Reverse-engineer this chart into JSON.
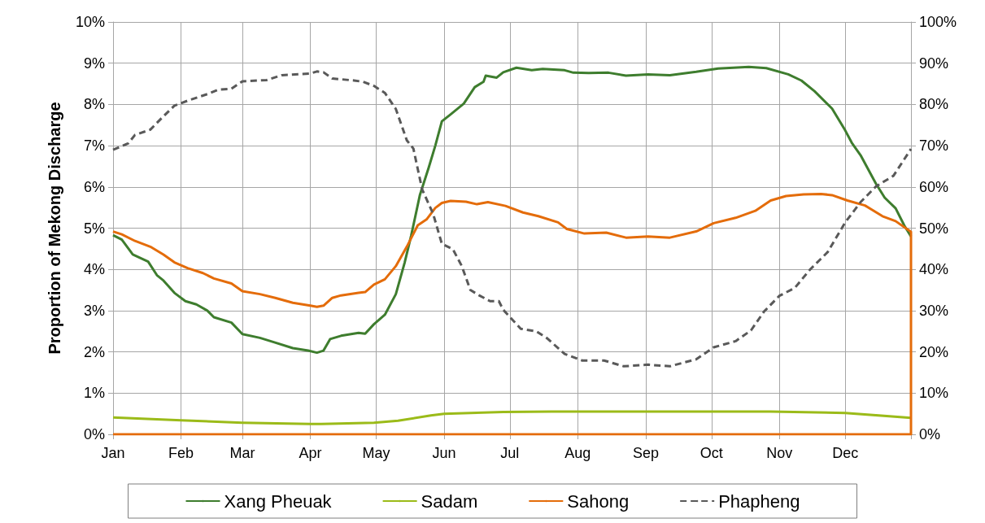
{
  "chart_data": {
    "type": "line",
    "ylabel": "Proportion of Mekong Discharge",
    "xlim": [
      "--01-01",
      "--12-31"
    ],
    "xticks": [
      {
        "value": "--01-01",
        "label": "Jan"
      },
      {
        "value": "--02-01",
        "label": "Feb"
      },
      {
        "value": "--03-01",
        "label": "Mar"
      },
      {
        "value": "--04-01",
        "label": "Apr"
      },
      {
        "value": "--05-01",
        "label": "May"
      },
      {
        "value": "--06-01",
        "label": "Jun"
      },
      {
        "value": "--07-01",
        "label": "Jul"
      },
      {
        "value": "--08-01",
        "label": "Aug"
      },
      {
        "value": "--09-01",
        "label": "Sep"
      },
      {
        "value": "--10-01",
        "label": "Oct"
      },
      {
        "value": "--11-01",
        "label": "Nov"
      },
      {
        "value": "--12-01",
        "label": "Dec"
      },
      {
        "value": "--12-31",
        "label": null
      }
    ],
    "ylim": [
      0,
      10
    ],
    "yticks": [
      {
        "value": 0,
        "label": "0%"
      },
      {
        "value": 1,
        "label": "1%"
      },
      {
        "value": 2,
        "label": "2%"
      },
      {
        "value": 3,
        "label": "3%"
      },
      {
        "value": 4,
        "label": "4%"
      },
      {
        "value": 5,
        "label": "5%"
      },
      {
        "value": 6,
        "label": "6%"
      },
      {
        "value": 7,
        "label": "7%"
      },
      {
        "value": 8,
        "label": "8%"
      },
      {
        "value": 9,
        "label": "9%"
      },
      {
        "value": 10,
        "label": "10%"
      }
    ],
    "y2lim": [
      0,
      100
    ],
    "y2ticks": [
      {
        "value": 0,
        "label": "0%"
      },
      {
        "value": 10,
        "label": "10%"
      },
      {
        "value": 20,
        "label": "20%"
      },
      {
        "value": 30,
        "label": "30%"
      },
      {
        "value": 40,
        "label": "40%"
      },
      {
        "value": 50,
        "label": "50%"
      },
      {
        "value": 60,
        "label": "60%"
      },
      {
        "value": 70,
        "label": "70%"
      },
      {
        "value": 80,
        "label": "80%"
      },
      {
        "value": 90,
        "label": "90%"
      },
      {
        "value": 100,
        "label": "100%"
      }
    ],
    "grid": true,
    "legend": "bottom",
    "marker": "none",
    "series": [
      {
        "name": "Xang Pheuak",
        "color": "#3e7d2e",
        "line_style": "solid",
        "x": [
          "--01-01",
          "--01-05",
          "--01-10",
          "--01-17",
          "--01-21",
          "--01-24",
          "--01-29",
          "--02-03",
          "--02-08",
          "--02-13",
          "--02-16",
          "--02-24",
          "--03-01",
          "--03-09",
          "--03-15",
          "--03-24",
          "--03-31",
          "--04-04",
          "--04-07",
          "--04-10",
          "--04-15",
          "--04-23",
          "--04-26",
          "--04-30",
          "--05-05",
          "--05-10",
          "--05-14",
          "--05-17",
          "--05-21",
          "--05-25",
          "--05-28",
          "--05-31",
          "--06-04",
          "--06-10",
          "--06-15",
          "--06-19",
          "--06-20",
          "--06-25",
          "--06-28",
          "--07-04",
          "--07-11",
          "--07-16",
          "--07-26",
          "--07-30",
          "--08-06",
          "--08-15",
          "--08-23",
          "--09-02",
          "--09-12",
          "--09-24",
          "--10-04",
          "--10-18",
          "--10-26",
          "--11-05",
          "--11-11",
          "--11-17",
          "--11-25",
          "--12-01",
          "--12-04",
          "--12-08",
          "--12-15",
          "--12-19",
          "--12-24",
          "--12-28",
          "--12-31"
        ],
        "values": [
          4.83,
          4.72,
          4.36,
          4.19,
          3.86,
          3.73,
          3.43,
          3.23,
          3.15,
          3.0,
          2.84,
          2.71,
          2.43,
          2.34,
          2.24,
          2.09,
          2.03,
          1.98,
          2.03,
          2.31,
          2.39,
          2.46,
          2.44,
          2.67,
          2.9,
          3.4,
          4.16,
          4.82,
          5.81,
          6.47,
          7.0,
          7.59,
          7.76,
          8.02,
          8.42,
          8.55,
          8.7,
          8.65,
          8.78,
          8.89,
          8.83,
          8.86,
          8.83,
          8.77,
          8.76,
          8.77,
          8.7,
          8.73,
          8.71,
          8.79,
          8.87,
          8.91,
          8.88,
          8.73,
          8.58,
          8.32,
          7.9,
          7.37,
          7.07,
          6.77,
          6.08,
          5.74,
          5.48,
          5.06,
          4.8
        ]
      },
      {
        "name": "Sadam",
        "color": "#9bbb19",
        "line_style": "solid",
        "x": [
          "--01-01",
          "--02-01",
          "--03-01",
          "--04-01",
          "--04-06",
          "--04-30",
          "--05-11",
          "--05-26",
          "--06-01",
          "--06-28",
          "--07-20",
          "--09-08",
          "--10-28",
          "--12-01",
          "--12-31"
        ],
        "values": [
          0.41,
          0.34,
          0.28,
          0.25,
          0.25,
          0.28,
          0.33,
          0.46,
          0.5,
          0.54,
          0.55,
          0.55,
          0.55,
          0.52,
          0.4
        ]
      },
      {
        "name": "Sahong",
        "color": "#e46c0a",
        "line_style": "solid",
        "x": [
          "--01-01",
          "--01-05",
          "--01-11",
          "--01-18",
          "--01-24",
          "--01-29",
          "--02-04",
          "--02-11",
          "--02-16",
          "--02-24",
          "--03-01",
          "--03-09",
          "--03-16",
          "--03-24",
          "--04-01",
          "--04-04",
          "--04-07",
          "--04-11",
          "--04-15",
          "--04-23",
          "--04-26",
          "--04-30",
          "--05-05",
          "--05-10",
          "--05-15",
          "--05-20",
          "--05-24",
          "--05-28",
          "--05-31",
          "--06-04",
          "--06-11",
          "--06-16",
          "--06-21",
          "--06-29",
          "--07-07",
          "--07-14",
          "--07-23",
          "--07-27",
          "--08-04",
          "--08-14",
          "--08-23",
          "--09-02",
          "--09-12",
          "--09-24",
          "--10-02",
          "--10-12",
          "--10-21",
          "--10-28",
          "--11-04",
          "--11-12",
          "--11-20",
          "--11-25",
          "--12-02",
          "--12-10",
          "--12-18",
          "--12-24",
          "--12-31",
          "--12-31",
          "--01-01"
        ],
        "values": [
          4.92,
          4.85,
          4.69,
          4.55,
          4.36,
          4.17,
          4.03,
          3.91,
          3.78,
          3.66,
          3.47,
          3.4,
          3.31,
          3.19,
          3.12,
          3.09,
          3.12,
          3.31,
          3.37,
          3.43,
          3.45,
          3.63,
          3.76,
          4.08,
          4.55,
          5.07,
          5.21,
          5.49,
          5.61,
          5.66,
          5.64,
          5.58,
          5.63,
          5.54,
          5.38,
          5.29,
          5.14,
          4.98,
          4.87,
          4.89,
          4.77,
          4.8,
          4.77,
          4.92,
          5.12,
          5.25,
          5.42,
          5.67,
          5.78,
          5.82,
          5.83,
          5.8,
          5.67,
          5.55,
          5.29,
          5.17,
          4.91,
          0,
          0
        ]
      },
      {
        "name": "Phapheng",
        "color": "#595959",
        "line_style": "dashed",
        "axis": "y2",
        "x": [
          "--01-01",
          "--01-08",
          "--01-11",
          "--01-18",
          "--01-23",
          "--01-29",
          "--02-04",
          "--02-13",
          "--02-18",
          "--02-24",
          "--03-01",
          "--03-12",
          "--03-19",
          "--04-01",
          "--04-04",
          "--04-07",
          "--04-11",
          "--04-21",
          "--04-25",
          "--04-30",
          "--05-05",
          "--05-10",
          "--05-15",
          "--05-18",
          "--05-22",
          "--05-27",
          "--05-31",
          "--06-05",
          "--06-09",
          "--06-13",
          "--06-17",
          "--06-22",
          "--06-26",
          "--06-28",
          "--07-06",
          "--07-13",
          "--07-18",
          "--07-26",
          "--08-03",
          "--08-13",
          "--08-22",
          "--09-02",
          "--09-12",
          "--09-24",
          "--10-02",
          "--10-12",
          "--10-19",
          "--10-25",
          "--11-01",
          "--11-08",
          "--11-15",
          "--11-23",
          "--12-01",
          "--12-08",
          "--12-15",
          "--12-23",
          "--12-31"
        ],
        "values": [
          69,
          70.6,
          72.6,
          73.9,
          76.6,
          79.7,
          80.9,
          82.5,
          83.6,
          83.8,
          85.6,
          85.9,
          87.1,
          87.5,
          88,
          87.8,
          86.3,
          85.8,
          85.5,
          84.5,
          82.8,
          78.9,
          71.3,
          69.3,
          59.4,
          53.5,
          46.2,
          44.9,
          40.9,
          35,
          33.7,
          32.3,
          32.3,
          30.2,
          25.6,
          25,
          23.3,
          19.5,
          17.9,
          17.9,
          16.5,
          16.9,
          16.5,
          18.2,
          21.1,
          22.6,
          25.2,
          29.8,
          33.6,
          35.5,
          40,
          44.2,
          51.4,
          56.3,
          60.1,
          62.7,
          69.2
        ]
      }
    ]
  }
}
